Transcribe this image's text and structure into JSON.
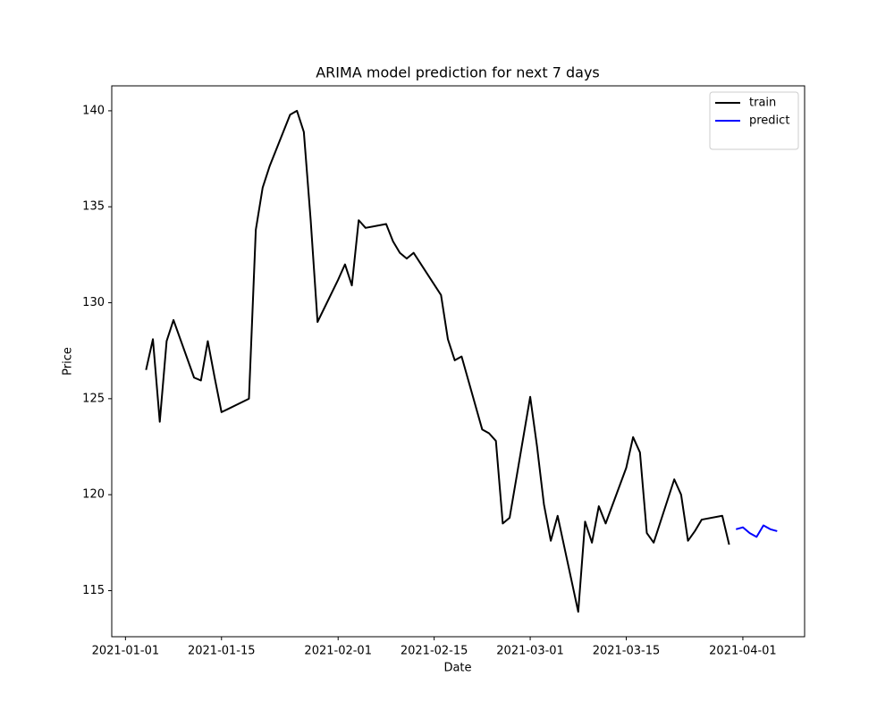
{
  "chart_data": {
    "type": "line",
    "title": "ARIMA model prediction for next 7 days",
    "x_label": "Date",
    "y_label": "Price",
    "xlim": [
      "2020-12-30",
      "2021-04-10"
    ],
    "xticks": [
      "2021-01-01",
      "2021-01-15",
      "2021-02-01",
      "2021-02-15",
      "2021-03-01",
      "2021-03-15",
      "2021-04-01"
    ],
    "ylim": [
      112.6,
      141.3
    ],
    "yticks": [
      115,
      120,
      125,
      130,
      135,
      140
    ],
    "legend": "upper right",
    "series": [
      {
        "name": "train",
        "color": "#000000",
        "x": [
          "2021-01-04",
          "2021-01-05",
          "2021-01-06",
          "2021-01-07",
          "2021-01-08",
          "2021-01-11",
          "2021-01-12",
          "2021-01-13",
          "2021-01-14",
          "2021-01-15",
          "2021-01-19",
          "2021-01-20",
          "2021-01-21",
          "2021-01-22",
          "2021-01-25",
          "2021-01-26",
          "2021-01-27",
          "2021-01-28",
          "2021-01-29",
          "2021-02-01",
          "2021-02-02",
          "2021-02-03",
          "2021-02-04",
          "2021-02-05",
          "2021-02-08",
          "2021-02-09",
          "2021-02-10",
          "2021-02-11",
          "2021-02-12",
          "2021-02-16",
          "2021-02-17",
          "2021-02-18",
          "2021-02-19",
          "2021-02-22",
          "2021-02-23",
          "2021-02-24",
          "2021-02-25",
          "2021-02-26",
          "2021-03-01",
          "2021-03-02",
          "2021-03-03",
          "2021-03-04",
          "2021-03-05",
          "2021-03-08",
          "2021-03-09",
          "2021-03-10",
          "2021-03-11",
          "2021-03-12",
          "2021-03-15",
          "2021-03-16",
          "2021-03-17",
          "2021-03-18",
          "2021-03-19",
          "2021-03-22",
          "2021-03-23",
          "2021-03-24",
          "2021-03-25",
          "2021-03-26",
          "2021-03-29",
          "2021-03-30"
        ],
        "values": [
          126.5,
          128.1,
          123.8,
          128.0,
          129.1,
          126.1,
          125.95,
          128.0,
          126.1,
          124.3,
          125.0,
          133.8,
          136.0,
          137.1,
          139.8,
          140.0,
          138.9,
          134.3,
          129.0,
          131.2,
          132.0,
          130.9,
          134.3,
          133.9,
          134.1,
          133.2,
          132.6,
          132.3,
          132.6,
          130.4,
          128.1,
          127.0,
          127.2,
          123.4,
          123.2,
          122.8,
          118.5,
          118.8,
          125.1,
          122.5,
          119.5,
          117.6,
          118.9,
          113.9,
          118.6,
          117.5,
          119.4,
          118.5,
          121.4,
          123.0,
          122.2,
          118.0,
          117.5,
          120.8,
          120.0,
          117.6,
          118.1,
          118.7,
          118.9,
          117.4
        ]
      },
      {
        "name": "predict",
        "color": "#0000ff",
        "x": [
          "2021-03-31",
          "2021-04-01",
          "2021-04-02",
          "2021-04-03",
          "2021-04-04",
          "2021-04-05",
          "2021-04-06"
        ],
        "values": [
          118.2,
          118.3,
          118.0,
          117.8,
          118.4,
          118.2,
          118.1
        ]
      }
    ]
  }
}
